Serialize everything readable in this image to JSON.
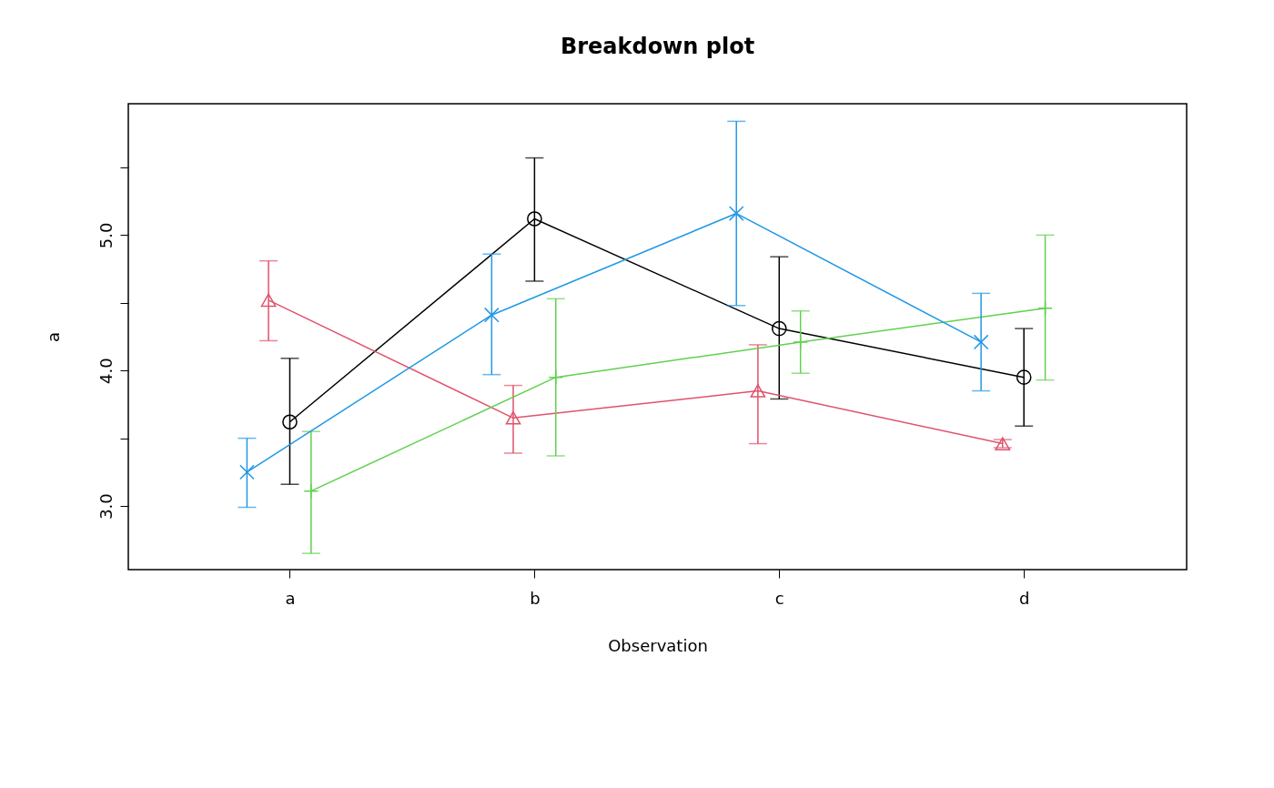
{
  "chart_data": {
    "type": "line",
    "title": "Breakdown plot",
    "xlabel": "Observation",
    "ylabel": "a",
    "categories": [
      "a",
      "b",
      "c",
      "d"
    ],
    "series": [
      {
        "color": "#000000",
        "marker": "circle",
        "values": [
          3.62,
          5.12,
          4.31,
          3.95
        ],
        "errors": [
          [
            3.16,
            4.09
          ],
          [
            4.66,
            5.57
          ],
          [
            3.79,
            4.84
          ],
          [
            3.59,
            4.31
          ]
        ]
      },
      {
        "color": "#df536b",
        "marker": "triangle",
        "values": [
          4.52,
          3.65,
          3.85,
          3.46
        ],
        "errors": [
          [
            4.22,
            4.81
          ],
          [
            3.39,
            3.89
          ],
          [
            3.46,
            4.19
          ],
          [
            3.43,
            3.49
          ]
        ]
      },
      {
        "color": "#61d04f",
        "marker": "plus",
        "values": [
          3.11,
          3.95,
          4.21,
          4.46
        ],
        "errors": [
          [
            2.65,
            3.55
          ],
          [
            3.37,
            4.53
          ],
          [
            3.98,
            4.44
          ],
          [
            3.93,
            5.0
          ]
        ]
      },
      {
        "color": "#2297e6",
        "marker": "cross",
        "values": [
          3.25,
          4.41,
          5.16,
          4.21
        ],
        "errors": [
          [
            2.99,
            3.5
          ],
          [
            3.97,
            4.86
          ],
          [
            4.48,
            5.84
          ],
          [
            3.85,
            4.57
          ]
        ]
      }
    ],
    "ylim": [
      2.53,
      5.97
    ],
    "yticks": [
      {
        "value": 3.0,
        "label": "3.0"
      },
      {
        "value": 3.5,
        "label": null
      },
      {
        "value": 4.0,
        "label": "4.0"
      },
      {
        "value": 4.5,
        "label": null
      },
      {
        "value": 5.0,
        "label": "5.0"
      },
      {
        "value": 5.5,
        "label": null
      }
    ],
    "grid": false
  }
}
